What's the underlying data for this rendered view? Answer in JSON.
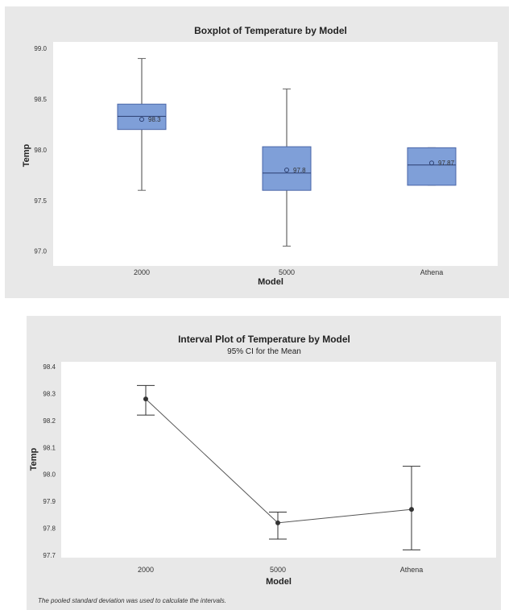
{
  "chart_data": [
    {
      "type": "boxplot",
      "title": "Boxplot of Temperature by Model",
      "xlabel": "Model",
      "ylabel": "Temp",
      "categories": [
        "2000",
        "5000",
        "Athena"
      ],
      "yticks": [
        "97.0",
        "97.5",
        "98.0",
        "98.5",
        "99.0"
      ],
      "ylim": [
        96.95,
        99.0
      ],
      "boxes": [
        {
          "whisker_low": 97.6,
          "q1": 98.2,
          "median": 98.33,
          "q3": 98.45,
          "whisker_high": 98.9,
          "mean": 98.3,
          "mean_label": "98.3"
        },
        {
          "whisker_low": 97.05,
          "q1": 97.6,
          "median": 97.77,
          "q3": 98.03,
          "whisker_high": 98.6,
          "mean": 97.8,
          "mean_label": "97.8"
        },
        {
          "whisker_low": 97.65,
          "q1": 97.65,
          "median": 97.85,
          "q3": 98.02,
          "whisker_high": 98.02,
          "mean": 97.87,
          "mean_label": "97.87"
        }
      ]
    },
    {
      "type": "interval",
      "title": "Interval Plot of Temperature by Model",
      "subtitle": "95% CI for the Mean",
      "xlabel": "Model",
      "ylabel": "Temp",
      "categories": [
        "2000",
        "5000",
        "Athena"
      ],
      "yticks": [
        "97.7",
        "97.8",
        "97.9",
        "98.0",
        "98.1",
        "98.2",
        "98.3",
        "98.4"
      ],
      "ylim": [
        97.7,
        98.4
      ],
      "means": [
        98.28,
        97.82,
        97.87
      ],
      "ci_low": [
        98.22,
        97.76,
        97.72
      ],
      "ci_high": [
        98.33,
        97.86,
        98.03
      ],
      "note": "The pooled standard deviation was used to calculate the intervals."
    }
  ]
}
